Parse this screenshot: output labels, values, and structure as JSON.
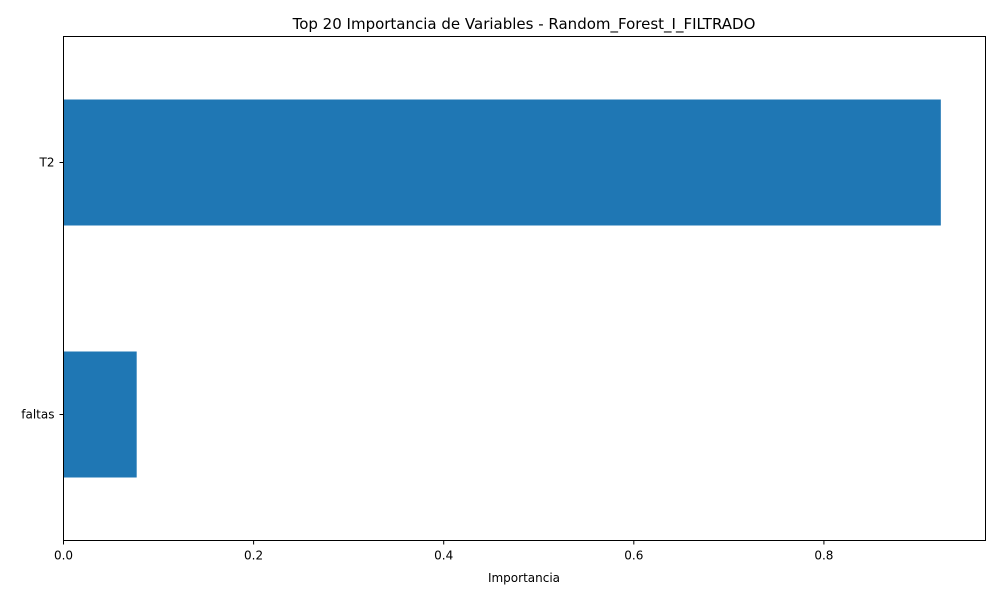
{
  "chart_data": {
    "type": "bar",
    "orientation": "horizontal",
    "title": "Top 20 Importancia de Variables - Random_Forest_I_FILTRADO",
    "xlabel": "Importancia",
    "ylabel": "",
    "categories": [
      "T2",
      "faltas"
    ],
    "values": [
      0.923,
      0.077
    ],
    "xlim": [
      0,
      0.97
    ],
    "xticks": [
      0.0,
      0.2,
      0.4,
      0.6,
      0.8
    ],
    "xtick_labels": [
      "0.0",
      "0.2",
      "0.4",
      "0.6",
      "0.8"
    ],
    "grid": false,
    "legend": "none",
    "bar_color": "#1f77b4"
  }
}
